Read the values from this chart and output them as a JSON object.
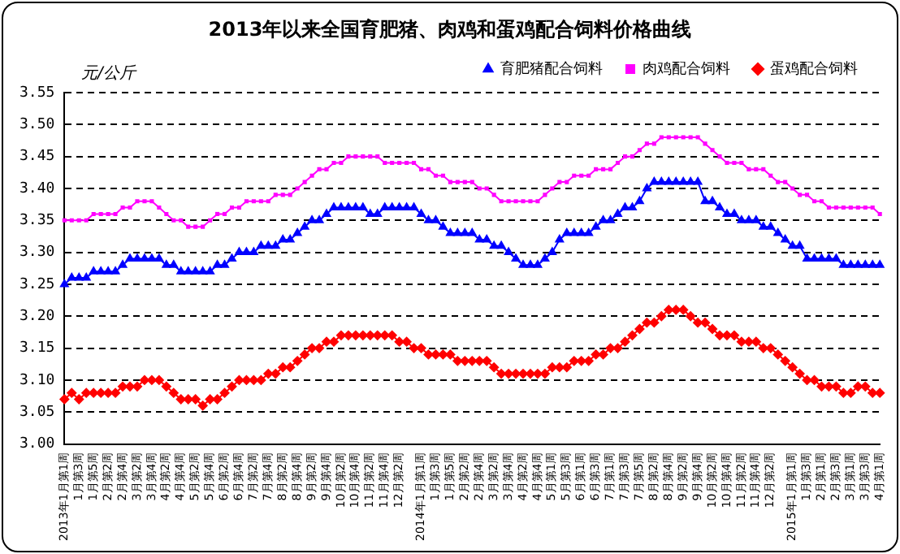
{
  "chart_data": {
    "type": "line",
    "title": "2013年以来全国育肥猪、肉鸡和蛋鸡配合饲料价格曲线",
    "ylabel": "元/公斤",
    "categories": [
      "2013年1月第1周",
      null,
      "1月第3周",
      null,
      "1月第5周",
      null,
      "2月第2周",
      null,
      "2月第4周",
      null,
      "3月第2周",
      null,
      "3月第4周",
      null,
      "4月第2周",
      null,
      "4月第4周",
      null,
      "5月第2周",
      null,
      "5月第4周",
      null,
      "6月第2周",
      null,
      "6月第4周",
      null,
      "7月第2周",
      null,
      "7月第4周",
      null,
      "8月第2周",
      null,
      "8月第4周",
      null,
      "9月第2周",
      null,
      "9月第4周",
      null,
      "10月第2周",
      null,
      "10月第4周",
      null,
      "11月第2周",
      null,
      "11月第4周",
      null,
      "12月第2周",
      null,
      null,
      "2014年1月第1周",
      null,
      "1月第3周",
      null,
      "1月第5周",
      null,
      "2月第2周",
      null,
      "2月第4周",
      null,
      "3月第2周",
      null,
      "3月第4周",
      null,
      "4月第2周",
      null,
      "4月第4周",
      null,
      "5月第1周",
      null,
      "5月第3周",
      null,
      "6月第1周",
      null,
      "6月第3周",
      null,
      "7月第1周",
      null,
      "7月第3周",
      null,
      "7月第5周",
      null,
      "8月第2周",
      null,
      "8月第4周",
      null,
      "9月第2周",
      null,
      "9月第4周",
      null,
      "10月第2周",
      null,
      "10月第4周",
      null,
      "11月第2周",
      null,
      "11月第4周",
      null,
      "12月第2周",
      null,
      null,
      "2015年1月第1周",
      null,
      "1月第3周",
      null,
      "2月第1周",
      null,
      "2月第3周",
      null,
      "3月第1周",
      null,
      "3月第3周",
      null,
      "4月第1周"
    ],
    "series": [
      {
        "name": "育肥猪配合饲料",
        "color": "#0000ff",
        "marker": "triangle",
        "values": [
          3.25,
          3.26,
          3.26,
          3.26,
          3.27,
          3.27,
          3.27,
          3.27,
          3.28,
          3.29,
          3.29,
          3.29,
          3.29,
          3.29,
          3.28,
          3.28,
          3.27,
          3.27,
          3.27,
          3.27,
          3.27,
          3.28,
          3.28,
          3.29,
          3.3,
          3.3,
          3.3,
          3.31,
          3.31,
          3.31,
          3.32,
          3.32,
          3.33,
          3.34,
          3.35,
          3.35,
          3.36,
          3.37,
          3.37,
          3.37,
          3.37,
          3.37,
          3.36,
          3.36,
          3.37,
          3.37,
          3.37,
          3.37,
          3.37,
          3.36,
          3.35,
          3.35,
          3.34,
          3.33,
          3.33,
          3.33,
          3.33,
          3.32,
          3.32,
          3.31,
          3.31,
          3.3,
          3.29,
          3.28,
          3.28,
          3.28,
          3.29,
          3.3,
          3.32,
          3.33,
          3.33,
          3.33,
          3.33,
          3.34,
          3.35,
          3.35,
          3.36,
          3.37,
          3.37,
          3.38,
          3.4,
          3.41,
          3.41,
          3.41,
          3.41,
          3.41,
          3.41,
          3.41,
          3.38,
          3.38,
          3.37,
          3.36,
          3.36,
          3.35,
          3.35,
          3.35,
          3.34,
          3.34,
          3.33,
          3.32,
          3.31,
          3.31,
          3.29,
          3.29,
          3.29,
          3.29,
          3.29,
          3.28,
          3.28,
          3.28,
          3.28,
          3.28,
          3.28
        ]
      },
      {
        "name": "肉鸡配合饲料",
        "color": "#ff00ff",
        "marker": "square",
        "values": [
          3.35,
          3.35,
          3.35,
          3.35,
          3.36,
          3.36,
          3.36,
          3.36,
          3.37,
          3.37,
          3.38,
          3.38,
          3.38,
          3.37,
          3.36,
          3.35,
          3.35,
          3.34,
          3.34,
          3.34,
          3.35,
          3.36,
          3.36,
          3.37,
          3.37,
          3.38,
          3.38,
          3.38,
          3.38,
          3.39,
          3.39,
          3.39,
          3.4,
          3.41,
          3.42,
          3.43,
          3.43,
          3.44,
          3.44,
          3.45,
          3.45,
          3.45,
          3.45,
          3.45,
          3.44,
          3.44,
          3.44,
          3.44,
          3.44,
          3.43,
          3.43,
          3.42,
          3.42,
          3.41,
          3.41,
          3.41,
          3.41,
          3.4,
          3.4,
          3.39,
          3.38,
          3.38,
          3.38,
          3.38,
          3.38,
          3.38,
          3.39,
          3.4,
          3.41,
          3.41,
          3.42,
          3.42,
          3.42,
          3.43,
          3.43,
          3.43,
          3.44,
          3.45,
          3.45,
          3.46,
          3.47,
          3.47,
          3.48,
          3.48,
          3.48,
          3.48,
          3.48,
          3.48,
          3.47,
          3.46,
          3.45,
          3.44,
          3.44,
          3.44,
          3.43,
          3.43,
          3.43,
          3.42,
          3.41,
          3.41,
          3.4,
          3.39,
          3.39,
          3.38,
          3.38,
          3.37,
          3.37,
          3.37,
          3.37,
          3.37,
          3.37,
          3.37,
          3.36
        ]
      },
      {
        "name": "蛋鸡配合饲料",
        "color": "#ff0000",
        "marker": "diamond",
        "values": [
          3.07,
          3.08,
          3.07,
          3.08,
          3.08,
          3.08,
          3.08,
          3.08,
          3.09,
          3.09,
          3.09,
          3.1,
          3.1,
          3.1,
          3.09,
          3.08,
          3.07,
          3.07,
          3.07,
          3.06,
          3.07,
          3.07,
          3.08,
          3.09,
          3.1,
          3.1,
          3.1,
          3.1,
          3.11,
          3.11,
          3.12,
          3.12,
          3.13,
          3.14,
          3.15,
          3.15,
          3.16,
          3.16,
          3.17,
          3.17,
          3.17,
          3.17,
          3.17,
          3.17,
          3.17,
          3.17,
          3.16,
          3.16,
          3.15,
          3.15,
          3.14,
          3.14,
          3.14,
          3.14,
          3.13,
          3.13,
          3.13,
          3.13,
          3.13,
          3.12,
          3.11,
          3.11,
          3.11,
          3.11,
          3.11,
          3.11,
          3.11,
          3.12,
          3.12,
          3.12,
          3.13,
          3.13,
          3.13,
          3.14,
          3.14,
          3.15,
          3.15,
          3.16,
          3.17,
          3.18,
          3.19,
          3.19,
          3.2,
          3.21,
          3.21,
          3.21,
          3.2,
          3.19,
          3.19,
          3.18,
          3.17,
          3.17,
          3.17,
          3.16,
          3.16,
          3.16,
          3.15,
          3.15,
          3.14,
          3.13,
          3.12,
          3.11,
          3.1,
          3.1,
          3.09,
          3.09,
          3.09,
          3.08,
          3.08,
          3.09,
          3.09,
          3.08,
          3.08
        ]
      }
    ],
    "ylim": [
      3.0,
      3.55
    ],
    "yticks": [
      {
        "value": 3.0,
        "label": "3.00"
      },
      3.05,
      {
        "value": 3.1,
        "label": "3.10"
      },
      3.15,
      {
        "value": 3.2,
        "label": "3.20"
      },
      3.25,
      {
        "value": 3.3,
        "label": "3.30"
      },
      3.35,
      {
        "value": 3.4,
        "label": "3.40"
      },
      3.45,
      {
        "value": 3.5,
        "label": "3.50"
      },
      3.55
    ],
    "grid": "y",
    "legend": "top right",
    "line_style": "solid"
  }
}
